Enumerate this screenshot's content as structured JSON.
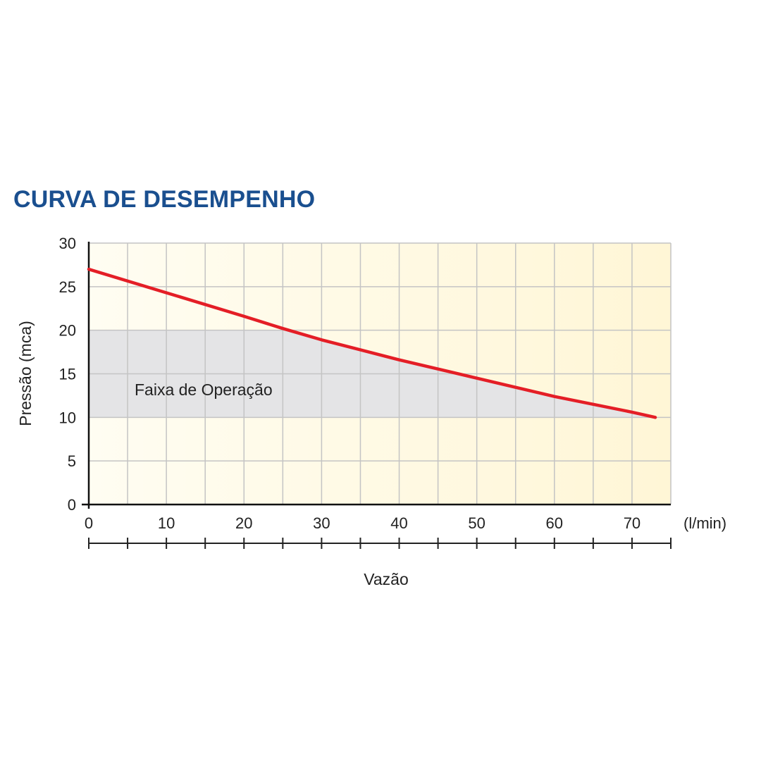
{
  "chart_data": {
    "type": "line",
    "title": "CURVA DE DESEMPENHO",
    "xlabel": "Vazão",
    "xunit": "(l/min)",
    "ylabel": "Pressão (mca)",
    "xlim": [
      0,
      75
    ],
    "ylim": [
      0,
      30
    ],
    "xticks": [
      0,
      10,
      20,
      30,
      40,
      50,
      60,
      70
    ],
    "yticks": [
      0,
      5,
      10,
      15,
      20,
      25,
      30
    ],
    "grid": true,
    "series": [
      {
        "color": "#e41e26",
        "x": [
          0,
          10,
          20,
          25,
          30,
          40,
          50,
          60,
          70,
          73
        ],
        "y": [
          27,
          24.3,
          21.6,
          20.2,
          18.9,
          16.6,
          14.5,
          12.4,
          10.6,
          10
        ]
      }
    ],
    "band": {
      "label": "Faixa de Operação",
      "ymin": 10,
      "ymax": 20,
      "color": "#e4e4e6"
    },
    "colors": {
      "background": "#fffbe8",
      "grid": "#c4c4c4",
      "title": "#1a4f8f"
    }
  }
}
